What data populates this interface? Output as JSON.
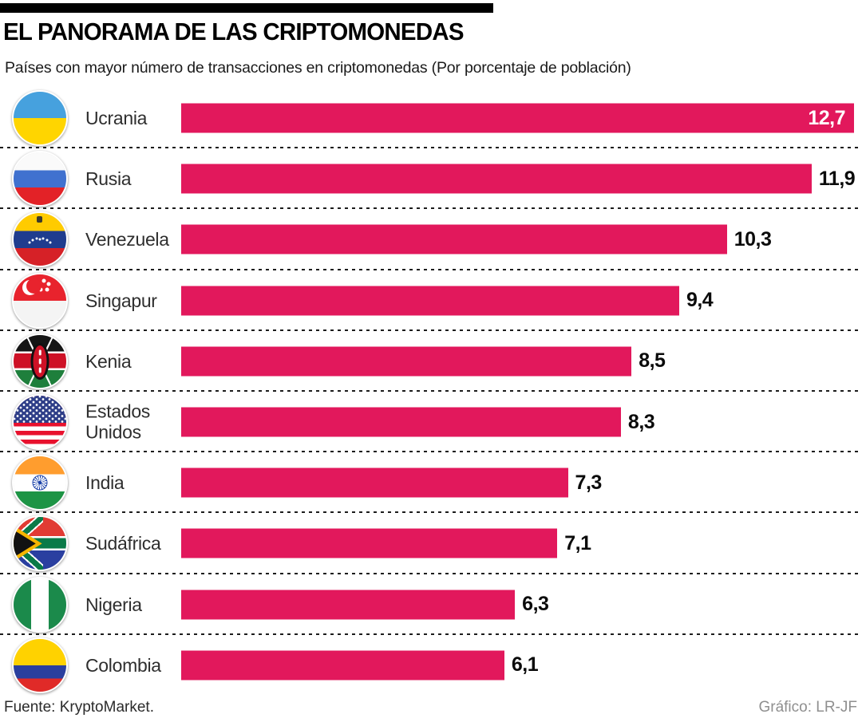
{
  "header": {
    "title": "EL PANORAMA DE LAS CRIPTOMONEDAS",
    "subtitle": "Países con mayor número de transacciones en criptomonedas (Por porcentaje de población)"
  },
  "chart_data": {
    "type": "bar",
    "orientation": "horizontal",
    "title": "EL PANORAMA DE LAS CRIPTOMONEDAS",
    "subtitle": "Países con mayor número de transacciones en criptomonedas (Por porcentaje de población)",
    "categories": [
      "Ucrania",
      "Rusia",
      "Venezuela",
      "Singapur",
      "Kenia",
      "Estados Unidos",
      "India",
      "Sudáfrica",
      "Nigeria",
      "Colombia"
    ],
    "values": [
      12.7,
      11.9,
      10.3,
      9.4,
      8.5,
      8.3,
      7.3,
      7.1,
      6.3,
      6.1
    ],
    "value_labels": [
      "12,7",
      "11,9",
      "10,3",
      "9,4",
      "8,5",
      "8,3",
      "7,3",
      "7,1",
      "6,3",
      "6,1"
    ],
    "xlim": [
      0,
      12.7
    ],
    "bar_color": "#E2185C",
    "grid": false,
    "legend": false,
    "row_separator": "dashed"
  },
  "rows": [
    {
      "label": "Ucrania",
      "flag": "ukraine",
      "value": 12.7,
      "value_label": "12,7",
      "label_inside": true
    },
    {
      "label": "Rusia",
      "flag": "russia",
      "value": 11.9,
      "value_label": "11,9",
      "label_inside": false
    },
    {
      "label": "Venezuela",
      "flag": "venezuela",
      "value": 10.3,
      "value_label": "10,3",
      "label_inside": false
    },
    {
      "label": "Singapur",
      "flag": "singapore",
      "value": 9.4,
      "value_label": "9,4",
      "label_inside": false
    },
    {
      "label": "Kenia",
      "flag": "kenya",
      "value": 8.5,
      "value_label": "8,5",
      "label_inside": false
    },
    {
      "label": "Estados Unidos",
      "flag": "usa",
      "value": 8.3,
      "value_label": "8,3",
      "label_inside": false
    },
    {
      "label": "India",
      "flag": "india",
      "value": 7.3,
      "value_label": "7,3",
      "label_inside": false
    },
    {
      "label": "Sudáfrica",
      "flag": "southafrica",
      "value": 7.1,
      "value_label": "7,1",
      "label_inside": false
    },
    {
      "label": "Nigeria",
      "flag": "nigeria",
      "value": 6.3,
      "value_label": "6,3",
      "label_inside": false
    },
    {
      "label": "Colombia",
      "flag": "colombia",
      "value": 6.1,
      "value_label": "6,1",
      "label_inside": false
    }
  ],
  "footer": {
    "source": "Fuente: KryptoMarket.",
    "credit": "Gráfico: LR-JF"
  },
  "colors": {
    "bar": "#E2185C",
    "title": "#000000",
    "value_text": "#0b0b0b",
    "value_text_inside": "#ffffff",
    "credit_gray": "#8f8f8f"
  }
}
